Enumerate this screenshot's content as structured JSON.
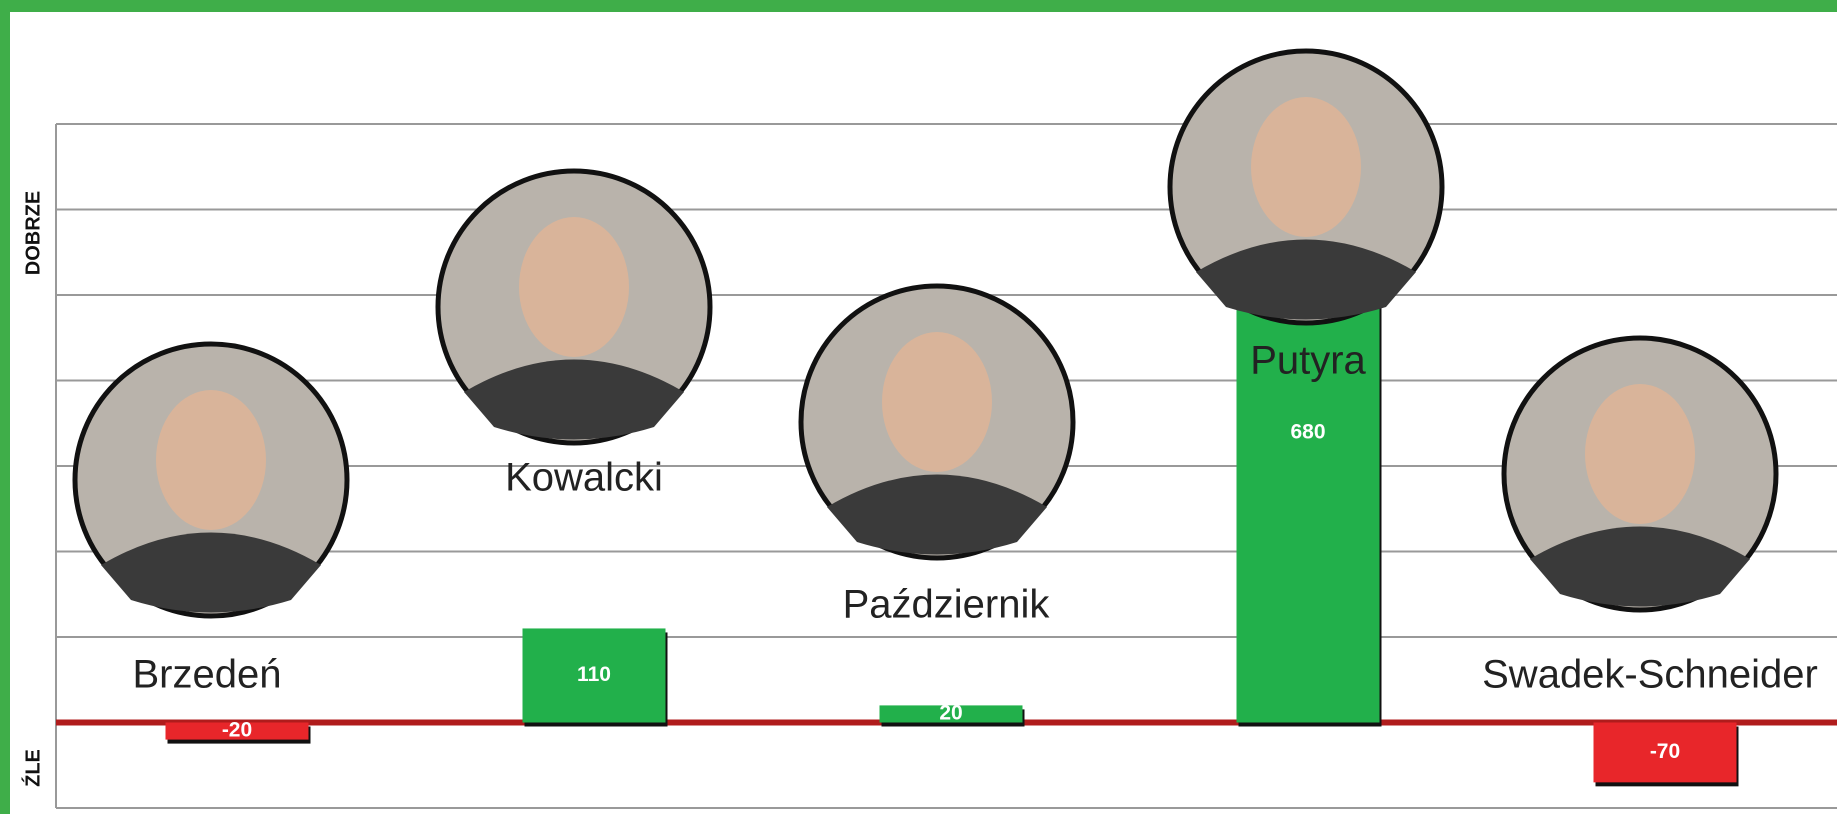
{
  "chart_data": {
    "type": "bar",
    "y_label_positive": "DOBRZE",
    "y_label_negative": "ŹLE",
    "categories": [
      "Brzedeń",
      "Kowalcki",
      "Październik",
      "Putyra",
      "Swadek-Schneider"
    ],
    "values": [
      -20,
      110,
      20,
      680,
      -70
    ],
    "positive_color": "#22b04b",
    "negative_color": "#e8262a",
    "ylim": [
      -100,
      700
    ],
    "yticks": [
      -100,
      0,
      100,
      200,
      300,
      400,
      500,
      600,
      700
    ],
    "grid": true
  }
}
